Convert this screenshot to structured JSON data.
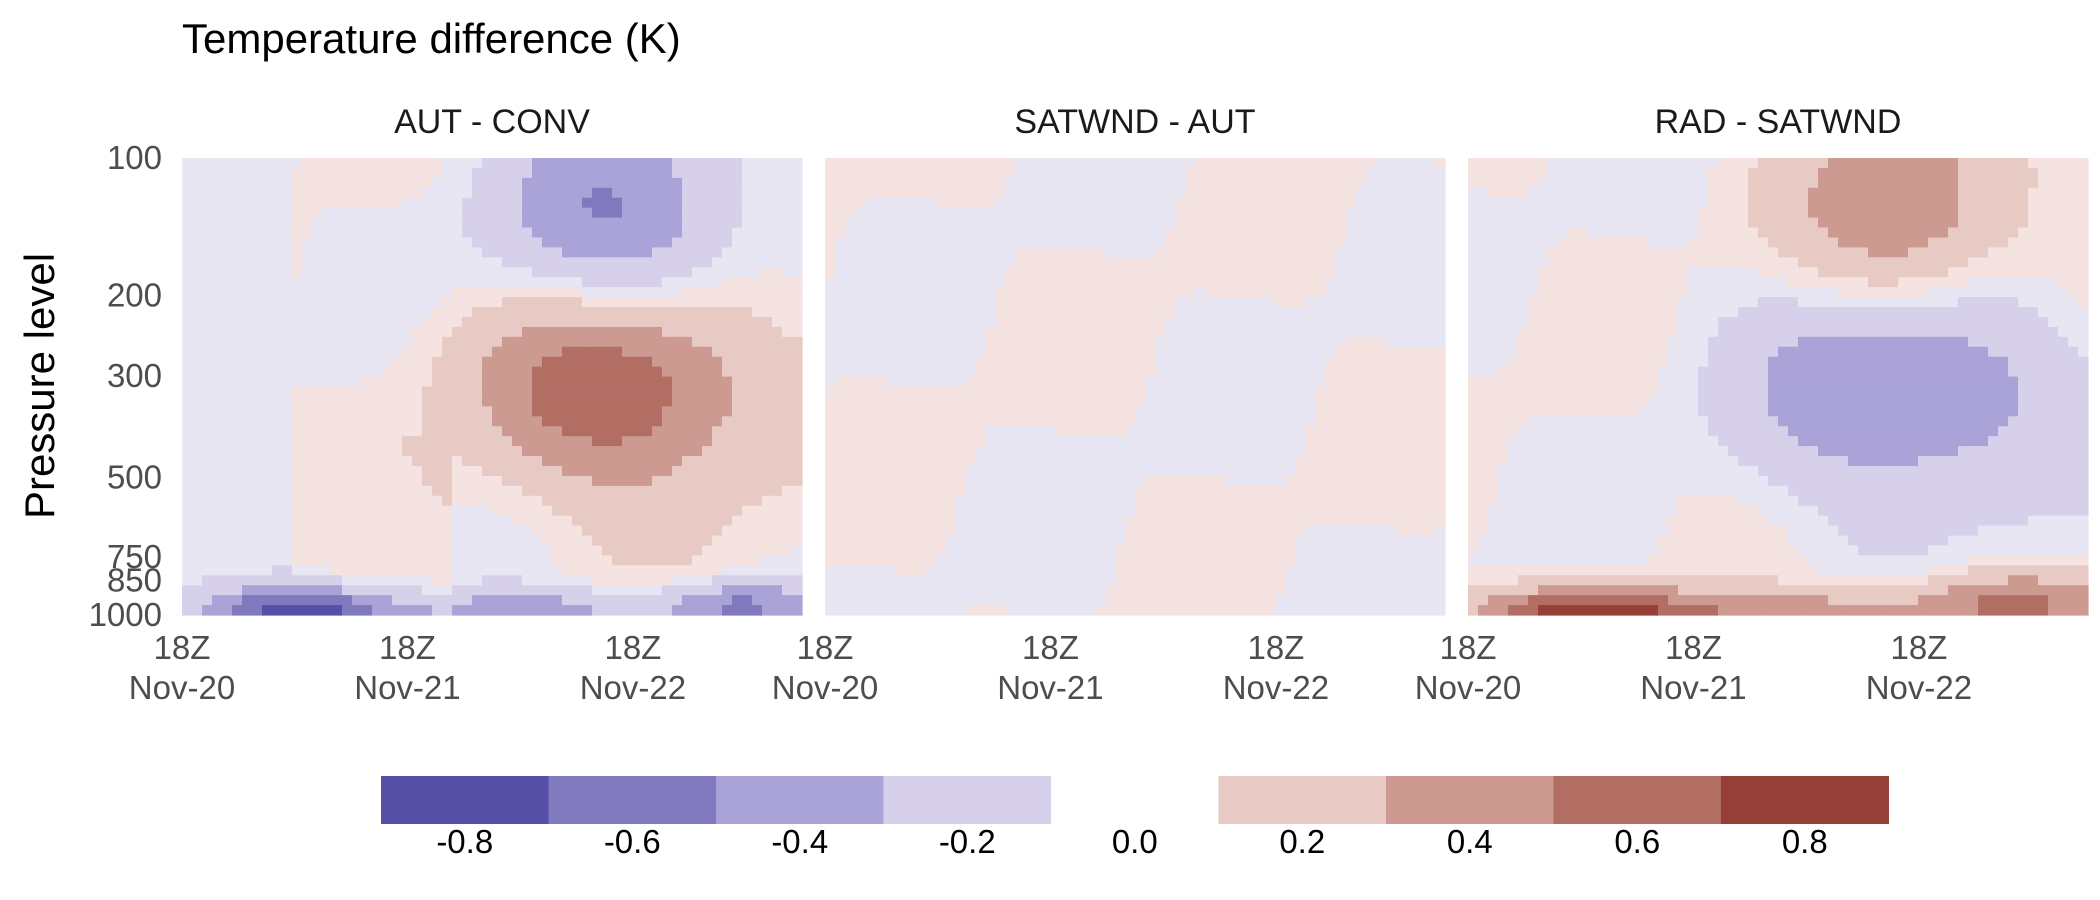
{
  "chart_data": {
    "type": "heatmap",
    "title": "Temperature difference (K)",
    "ylabel": "Pressure level",
    "xlabel": "",
    "y_scale": "log",
    "y_ticks": [
      100,
      200,
      300,
      500,
      750,
      850,
      1000
    ],
    "y_range": [
      1000,
      100
    ],
    "x_ticks": [
      "18Z\nNov-20",
      "18Z\nNov-21",
      "18Z\nNov-22"
    ],
    "x_range_days": [
      0,
      2.75
    ],
    "panels": [
      {
        "name": "AUT - CONV",
        "background": "negative-weak",
        "blobs": [
          {
            "t": 1.95,
            "p": 145,
            "dt": 0.4,
            "dlogp": 0.17,
            "value": -0.55
          },
          {
            "t": 1.95,
            "p": 310,
            "dt": 0.45,
            "dlogp": 0.17,
            "value": 0.72
          },
          {
            "t": 0.55,
            "p": 990,
            "dt": 0.3,
            "dlogp": 0.04,
            "value": -0.85
          },
          {
            "t": 1.55,
            "p": 990,
            "dt": 0.35,
            "dlogp": 0.035,
            "value": -0.45
          },
          {
            "t": 2.45,
            "p": 960,
            "dt": 0.25,
            "dlogp": 0.04,
            "value": -0.55
          }
        ]
      },
      {
        "name": "SATWND - AUT",
        "background": "mixed-weak",
        "blobs": []
      },
      {
        "name": "RAD - SATWND",
        "background": "mixed-weak",
        "blobs": [
          {
            "t": 1.95,
            "p": 140,
            "dt": 0.35,
            "dlogp": 0.17,
            "value": 0.55
          },
          {
            "t": 1.95,
            "p": 310,
            "dt": 0.45,
            "dlogp": 0.18,
            "value": -0.6
          },
          {
            "t": 0.55,
            "p": 990,
            "dt": 0.35,
            "dlogp": 0.04,
            "value": 0.85
          },
          {
            "t": 1.55,
            "p": 990,
            "dt": 0.4,
            "dlogp": 0.035,
            "value": 0.4
          },
          {
            "t": 2.4,
            "p": 940,
            "dt": 0.35,
            "dlogp": 0.05,
            "value": 0.5
          }
        ]
      }
    ],
    "colorbar": {
      "ticks": [
        "-0.8",
        "-0.6",
        "-0.4",
        "-0.2",
        "0.0",
        "0.2",
        "0.4",
        "0.6",
        "0.8"
      ],
      "colors": [
        "#554fa6",
        "#8079bd",
        "#aaa3d8",
        "#d6d0ea",
        "#ffffff",
        "#e8cac4",
        "#cd9a91",
        "#b36e64",
        "#953f38"
      ]
    },
    "neutral_negative": "#e8e6f2",
    "neutral_positive": "#f4e3e1"
  }
}
